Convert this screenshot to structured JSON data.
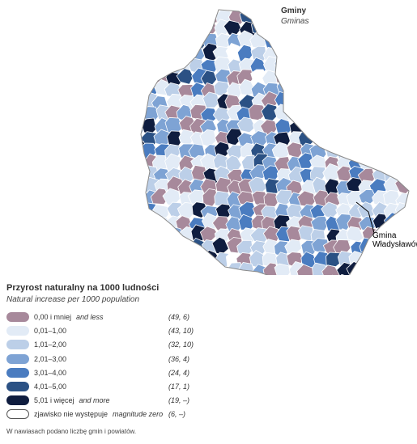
{
  "title": {
    "pl": "Gminy",
    "en": "Gminas"
  },
  "callout_label": [
    "Gmina",
    "Władysławów"
  ],
  "legend": {
    "title_pl": "Przyrost naturalny na 1000 ludności",
    "title_en": "Natural increase per 1000 population",
    "items": [
      {
        "label_pl": "0,00 i mniej",
        "label_en": "and less",
        "count": "(49, 6)",
        "color": "#a7899b"
      },
      {
        "label_pl": "0,01–1,00",
        "label_en": "",
        "count": "(43, 10)",
        "color": "#e2ebf6"
      },
      {
        "label_pl": "1,01–2,00",
        "label_en": "",
        "count": "(32, 10)",
        "color": "#bccfe8"
      },
      {
        "label_pl": "2,01–3,00",
        "label_en": "",
        "count": "(36, 4)",
        "color": "#7ea3d4"
      },
      {
        "label_pl": "3,01–4,00",
        "label_en": "",
        "count": "(24, 4)",
        "color": "#4a7cc0"
      },
      {
        "label_pl": "4,01–5,00",
        "label_en": "",
        "count": "(17, 1)",
        "color": "#2b5184"
      },
      {
        "label_pl": "5,01 i więcej",
        "label_en": "and more",
        "count": "(19, –)",
        "color": "#0f1d3f"
      },
      {
        "label_pl": "zjawisko nie występuje",
        "label_en": "magnitude zero",
        "count": "(6, –)",
        "color": "#ffffff"
      }
    ]
  },
  "note": "W nawiasach podano liczbę gmin i powiatów."
}
